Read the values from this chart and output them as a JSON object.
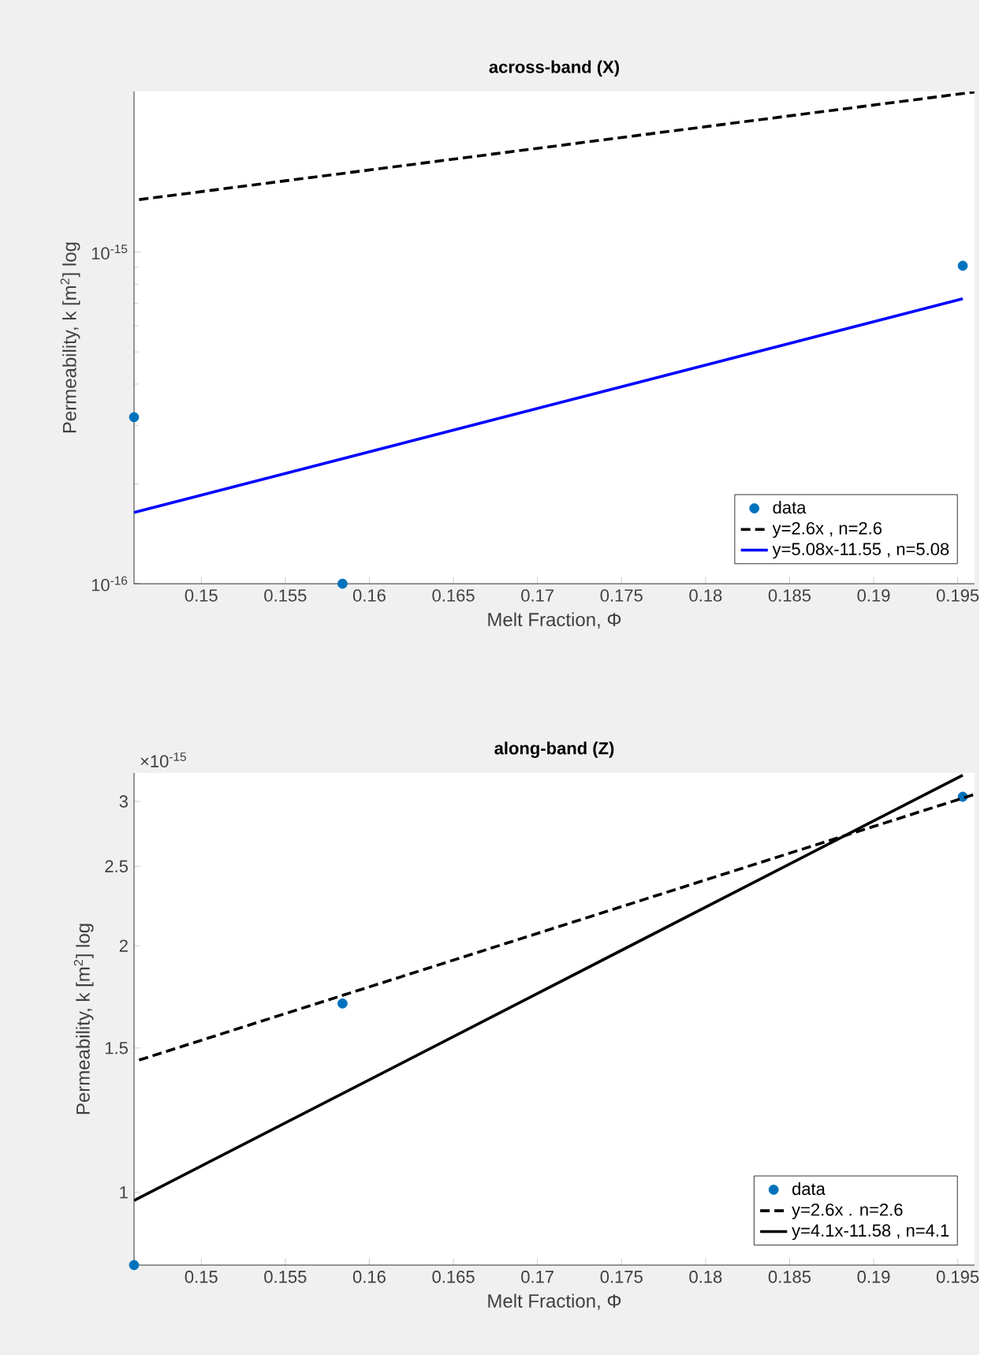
{
  "chart_data": [
    {
      "type": "scatter",
      "title": "across-band (X)",
      "xlabel": "Melt Fraction, Φ",
      "ylabel": "Permeability, k [m$^{2}$] log",
      "log": "y",
      "grid": false,
      "legend": "bottom right",
      "xlim": [
        0.146,
        0.196
      ],
      "ylim": [
        1e-16,
        3.05e-15
      ],
      "xticks": [
        0.15,
        0.155,
        0.16,
        0.165,
        0.17,
        0.175,
        0.18,
        0.185,
        0.19,
        0.195
      ],
      "yticks": [
        {
          "value": 1e-16,
          "label": "10$^{-16}$"
        },
        {
          "value": 1e-15,
          "label": "10$^{-15}$"
        }
      ],
      "series": [
        {
          "name": "data",
          "marker": "circle",
          "color": "#0072bd",
          "x": [
            0.146,
            0.1584,
            0.1953
          ],
          "values": [
            3.18e-16,
            1e-16,
            9.1e-16
          ]
        },
        {
          "name": "y=2.6x , n=2.6",
          "type": "line",
          "line_style": "dashed",
          "marker": "none",
          "color": "#000000",
          "x": [
            0.1463,
            0.196
          ],
          "values": [
            1.44e-15,
            3.04e-15
          ]
        },
        {
          "name": "y=5.08x-11.55 , n=5.08",
          "type": "line",
          "line_style": "solid",
          "marker": "none",
          "color": "#0000ff",
          "x": [
            0.146,
            0.1953
          ],
          "values": [
            1.64e-16,
            7.24e-16
          ]
        }
      ]
    },
    {
      "type": "scatter",
      "title": "along-band (Z)",
      "xlabel": "Melt Fraction, Φ",
      "ylabel": "Permeability, k [m$^{2}$] log",
      "annotations": [
        "×10$^{-15}$"
      ],
      "log": "y",
      "grid": false,
      "legend": "bottom right",
      "xlim": [
        0.146,
        0.196
      ],
      "ylim": [
        0.815,
        3.25
      ],
      "xticks": [
        0.15,
        0.155,
        0.16,
        0.165,
        0.17,
        0.175,
        0.18,
        0.185,
        0.19,
        0.195
      ],
      "yticks": [
        1,
        1.5,
        2,
        2.5,
        3
      ],
      "series": [
        {
          "name": "data",
          "marker": "circle",
          "color": "#0072bd",
          "x": [
            0.146,
            0.1584,
            0.1953
          ],
          "values": [
            0.815,
            1.7,
            3.04
          ]
        },
        {
          "name": "y=2.6x . n=2.6",
          "type": "line",
          "line_style": "dashed",
          "marker": "none",
          "color": "#000000",
          "x": [
            0.1463,
            0.196
          ],
          "values": [
            1.45,
            3.06
          ]
        },
        {
          "name": "y=4.1x-11.58 , n=4.1",
          "type": "line",
          "line_style": "solid",
          "marker": "none",
          "color": "#000000",
          "x": [
            0.146,
            0.1953
          ],
          "values": [
            0.977,
            3.23
          ]
        }
      ]
    }
  ]
}
